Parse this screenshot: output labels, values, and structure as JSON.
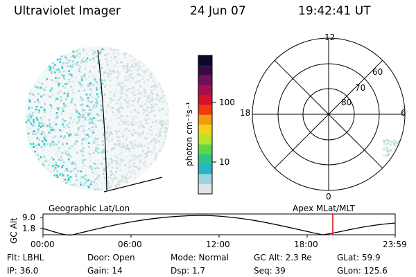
{
  "header": {
    "title": "Ultraviolet Imager",
    "date": "24 Jun 07",
    "time": "19:42:41 UT"
  },
  "colorbar": {
    "unit_label": "photon cm⁻²s⁻¹",
    "tick_labels": [
      "100",
      "10"
    ],
    "colors": [
      "#0a0a28",
      "#3a0a48",
      "#70105a",
      "#a8104c",
      "#d81030",
      "#f03a10",
      "#f49a10",
      "#f4d21a",
      "#b6e42c",
      "#5ad84a",
      "#2cc48a",
      "#28b4c8",
      "#9ad4e0",
      "#dde4ea"
    ]
  },
  "polar_plot": {
    "mlt_labels": {
      "top": "12",
      "bottom": "0",
      "left": "18",
      "right": "6"
    },
    "lat_labels": [
      "60",
      "70",
      "80"
    ]
  },
  "timeline": {
    "left_title": "Geographic Lat/Lon",
    "right_title": "Apex  MLat/MLT",
    "axis_label": "GC Alt",
    "y_ticks": [
      "9.0",
      "1.8"
    ],
    "x_ticks": [
      "00:00",
      "06:00",
      "12:00",
      "18:00",
      "23:59"
    ],
    "current_time_marker": "19:42",
    "marker_color": "#e00000"
  },
  "footer": {
    "row1": {
      "filter": "Flt: LBHL",
      "door": "Door: Open",
      "mode": "Mode: Normal",
      "gc_alt": "GC Alt: 2.3 Re",
      "glat": "GLat:  59.9"
    },
    "row2": {
      "ip": "IP: 36.0",
      "gain": "Gain: 14",
      "dsp": "Dsp:     1.7",
      "seq": "Seq: 39",
      "glon": "GLon: 125.6"
    }
  }
}
